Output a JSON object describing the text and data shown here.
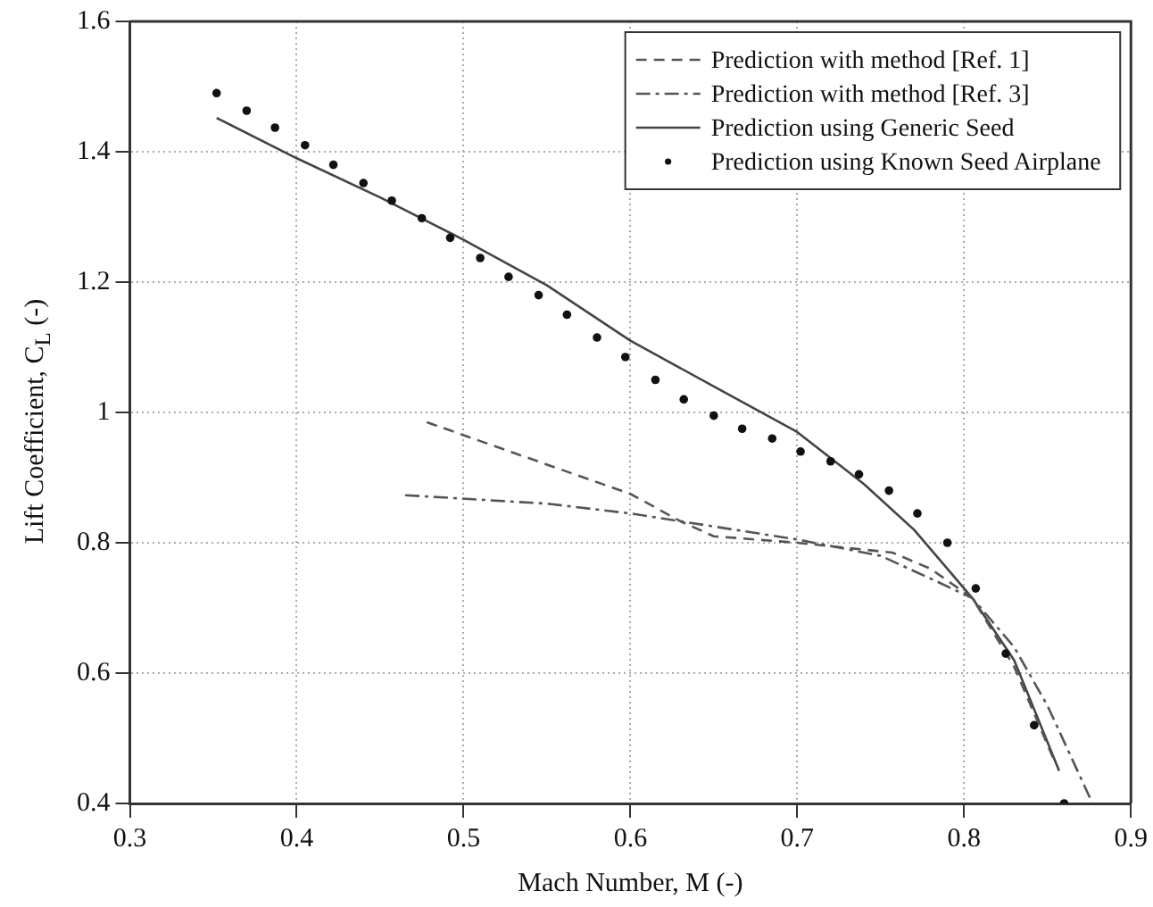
{
  "chart_data": {
    "type": "line",
    "xlabel": "Mach Number, M (-)",
    "ylabel": "Lift Coefficient, C$_{L}$ (-)",
    "xlim": [
      0.3,
      0.9
    ],
    "xticks": [
      0.3,
      0.4,
      0.5,
      0.6,
      0.7,
      0.8,
      0.9
    ],
    "ylim": [
      0.4,
      1.6
    ],
    "yticks": [
      0.4,
      0.6,
      0.8,
      1,
      1.2,
      1.4,
      1.6
    ],
    "grid": true,
    "legend": "top right",
    "series": [
      {
        "name": "Prediction with method [Ref. 1]",
        "line_style": "dashed",
        "marker": "none",
        "color": "#555555",
        "x": [
          0.478,
          0.55,
          0.6,
          0.63,
          0.65,
          0.7,
          0.757,
          0.78,
          0.805,
          0.83,
          0.855
        ],
        "values": [
          0.985,
          0.92,
          0.875,
          0.833,
          0.81,
          0.8,
          0.785,
          0.76,
          0.715,
          0.61,
          0.46
        ]
      },
      {
        "name": "Prediction with method [Ref. 3]",
        "line_style": "dashdot",
        "marker": "none",
        "color": "#555555",
        "x": [
          0.465,
          0.55,
          0.6,
          0.65,
          0.7,
          0.75,
          0.78,
          0.805,
          0.83,
          0.85,
          0.877
        ],
        "values": [
          0.873,
          0.86,
          0.845,
          0.825,
          0.805,
          0.78,
          0.745,
          0.715,
          0.64,
          0.55,
          0.4
        ]
      },
      {
        "name": "Prediction using Generic Seed",
        "line_style": "solid",
        "marker": "none",
        "color": "#444444",
        "x": [
          0.352,
          0.4,
          0.45,
          0.5,
          0.55,
          0.6,
          0.65,
          0.7,
          0.74,
          0.77,
          0.79,
          0.805,
          0.83,
          0.857
        ],
        "values": [
          1.452,
          1.39,
          1.33,
          1.265,
          1.195,
          1.11,
          1.04,
          0.97,
          0.89,
          0.82,
          0.76,
          0.715,
          0.62,
          0.45
        ]
      },
      {
        "name": "Prediction using Known Seed Airplane",
        "type": "scatter",
        "marker": "circle",
        "color": "#111111",
        "x": [
          0.352,
          0.37,
          0.387,
          0.405,
          0.422,
          0.44,
          0.457,
          0.475,
          0.492,
          0.51,
          0.527,
          0.545,
          0.562,
          0.58,
          0.597,
          0.615,
          0.632,
          0.65,
          0.667,
          0.685,
          0.702,
          0.72,
          0.737,
          0.755,
          0.772,
          0.79,
          0.807,
          0.825,
          0.842,
          0.86
        ],
        "values": [
          1.49,
          1.463,
          1.437,
          1.41,
          1.38,
          1.352,
          1.325,
          1.298,
          1.268,
          1.237,
          1.208,
          1.18,
          1.15,
          1.115,
          1.085,
          1.05,
          1.02,
          0.995,
          0.975,
          0.96,
          0.94,
          0.925,
          0.905,
          0.88,
          0.845,
          0.8,
          0.73,
          0.63,
          0.52,
          0.4
        ]
      }
    ]
  }
}
